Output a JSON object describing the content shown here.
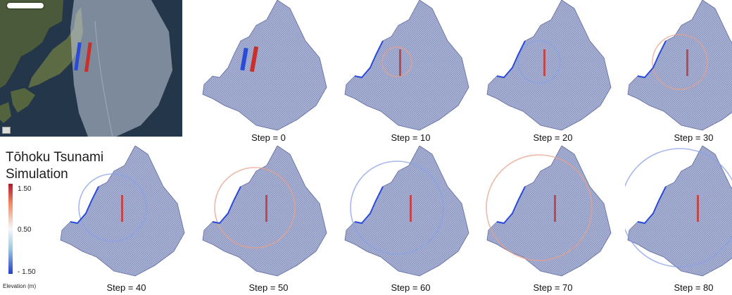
{
  "title_lines": [
    "Tōhoku Tsunami",
    "Simulation"
  ],
  "colorbar": {
    "max_label": "1.50",
    "mid_label": "0.50",
    "min_label": "- 1.50",
    "unit_label": "Elevation (m)",
    "colors": {
      "high": "#b2182b",
      "mid": "#f7f7f7",
      "low": "#2140c7"
    }
  },
  "mesh_color": "#7a87b8",
  "steps": [
    {
      "label": "Step = 0"
    },
    {
      "label": "Step = 10"
    },
    {
      "label": "Step = 20"
    },
    {
      "label": "Step = 30"
    },
    {
      "label": "Step = 40"
    },
    {
      "label": "Step = 50"
    },
    {
      "label": "Step = 60"
    },
    {
      "label": "Step = 70"
    },
    {
      "label": "Step = 80"
    }
  ]
}
